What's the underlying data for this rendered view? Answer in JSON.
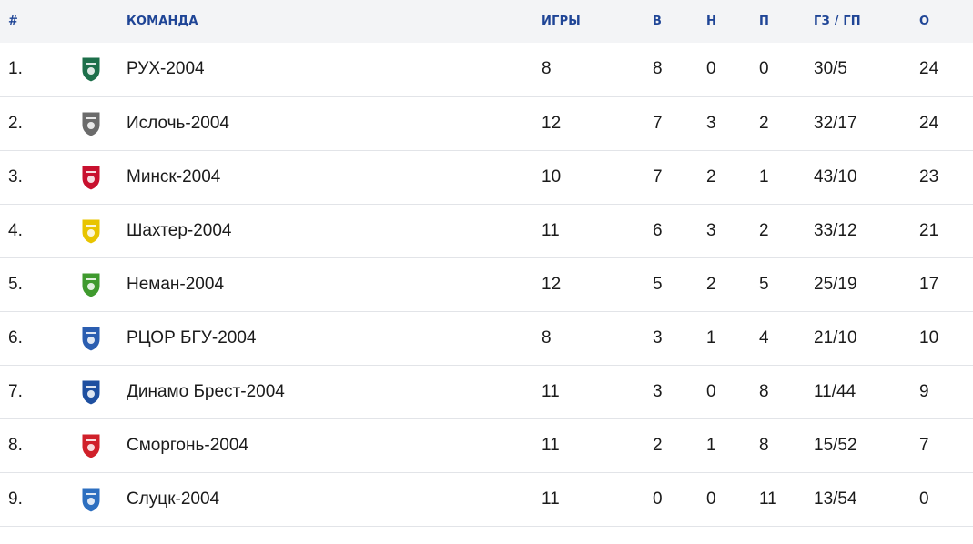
{
  "table": {
    "headers": {
      "pos": "#",
      "team": "КОМАНДА",
      "games": "ИГРЫ",
      "wins": "В",
      "draws": "Н",
      "losses": "П",
      "goals": "ГЗ / ГП",
      "points": "О"
    },
    "rows": [
      {
        "pos": "1.",
        "team": "РУХ-2004",
        "games": "8",
        "wins": "8",
        "draws": "0",
        "losses": "0",
        "goals": "30/5",
        "points": "24",
        "icon": "ruh-crest-icon",
        "color": "#1d6f4a"
      },
      {
        "pos": "2.",
        "team": "Ислочь-2004",
        "games": "12",
        "wins": "7",
        "draws": "3",
        "losses": "2",
        "goals": "32/17",
        "points": "24",
        "icon": "isloch-crest-icon",
        "color": "#6b6b6b"
      },
      {
        "pos": "3.",
        "team": "Минск-2004",
        "games": "10",
        "wins": "7",
        "draws": "2",
        "losses": "1",
        "goals": "43/10",
        "points": "23",
        "icon": "minsk-crest-icon",
        "color": "#c8102e"
      },
      {
        "pos": "4.",
        "team": "Шахтер-2004",
        "games": "11",
        "wins": "6",
        "draws": "3",
        "losses": "2",
        "goals": "33/12",
        "points": "21",
        "icon": "shakhtar-crest-icon",
        "color": "#e8c400"
      },
      {
        "pos": "5.",
        "team": "Неман-2004",
        "games": "12",
        "wins": "5",
        "draws": "2",
        "losses": "5",
        "goals": "25/19",
        "points": "17",
        "icon": "neman-crest-icon",
        "color": "#3f9a2e"
      },
      {
        "pos": "6.",
        "team": "РЦОР БГУ-2004",
        "games": "8",
        "wins": "3",
        "draws": "1",
        "losses": "4",
        "goals": "21/10",
        "points": "10",
        "icon": "bgu-crest-icon",
        "color": "#2a5db0"
      },
      {
        "pos": "7.",
        "team": "Динамо Брест-2004",
        "games": "11",
        "wins": "3",
        "draws": "0",
        "losses": "8",
        "goals": "11/44",
        "points": "9",
        "icon": "dinamo-brest-crest-icon",
        "color": "#1e4fa0"
      },
      {
        "pos": "8.",
        "team": "Сморгонь-2004",
        "games": "11",
        "wins": "2",
        "draws": "1",
        "losses": "8",
        "goals": "15/52",
        "points": "7",
        "icon": "smorgon-crest-icon",
        "color": "#d0202a"
      },
      {
        "pos": "9.",
        "team": "Слуцк-2004",
        "games": "11",
        "wins": "0",
        "draws": "0",
        "losses": "11",
        "goals": "13/54",
        "points": "0",
        "icon": "slutsk-crest-icon",
        "color": "#2d6fc0"
      }
    ]
  }
}
